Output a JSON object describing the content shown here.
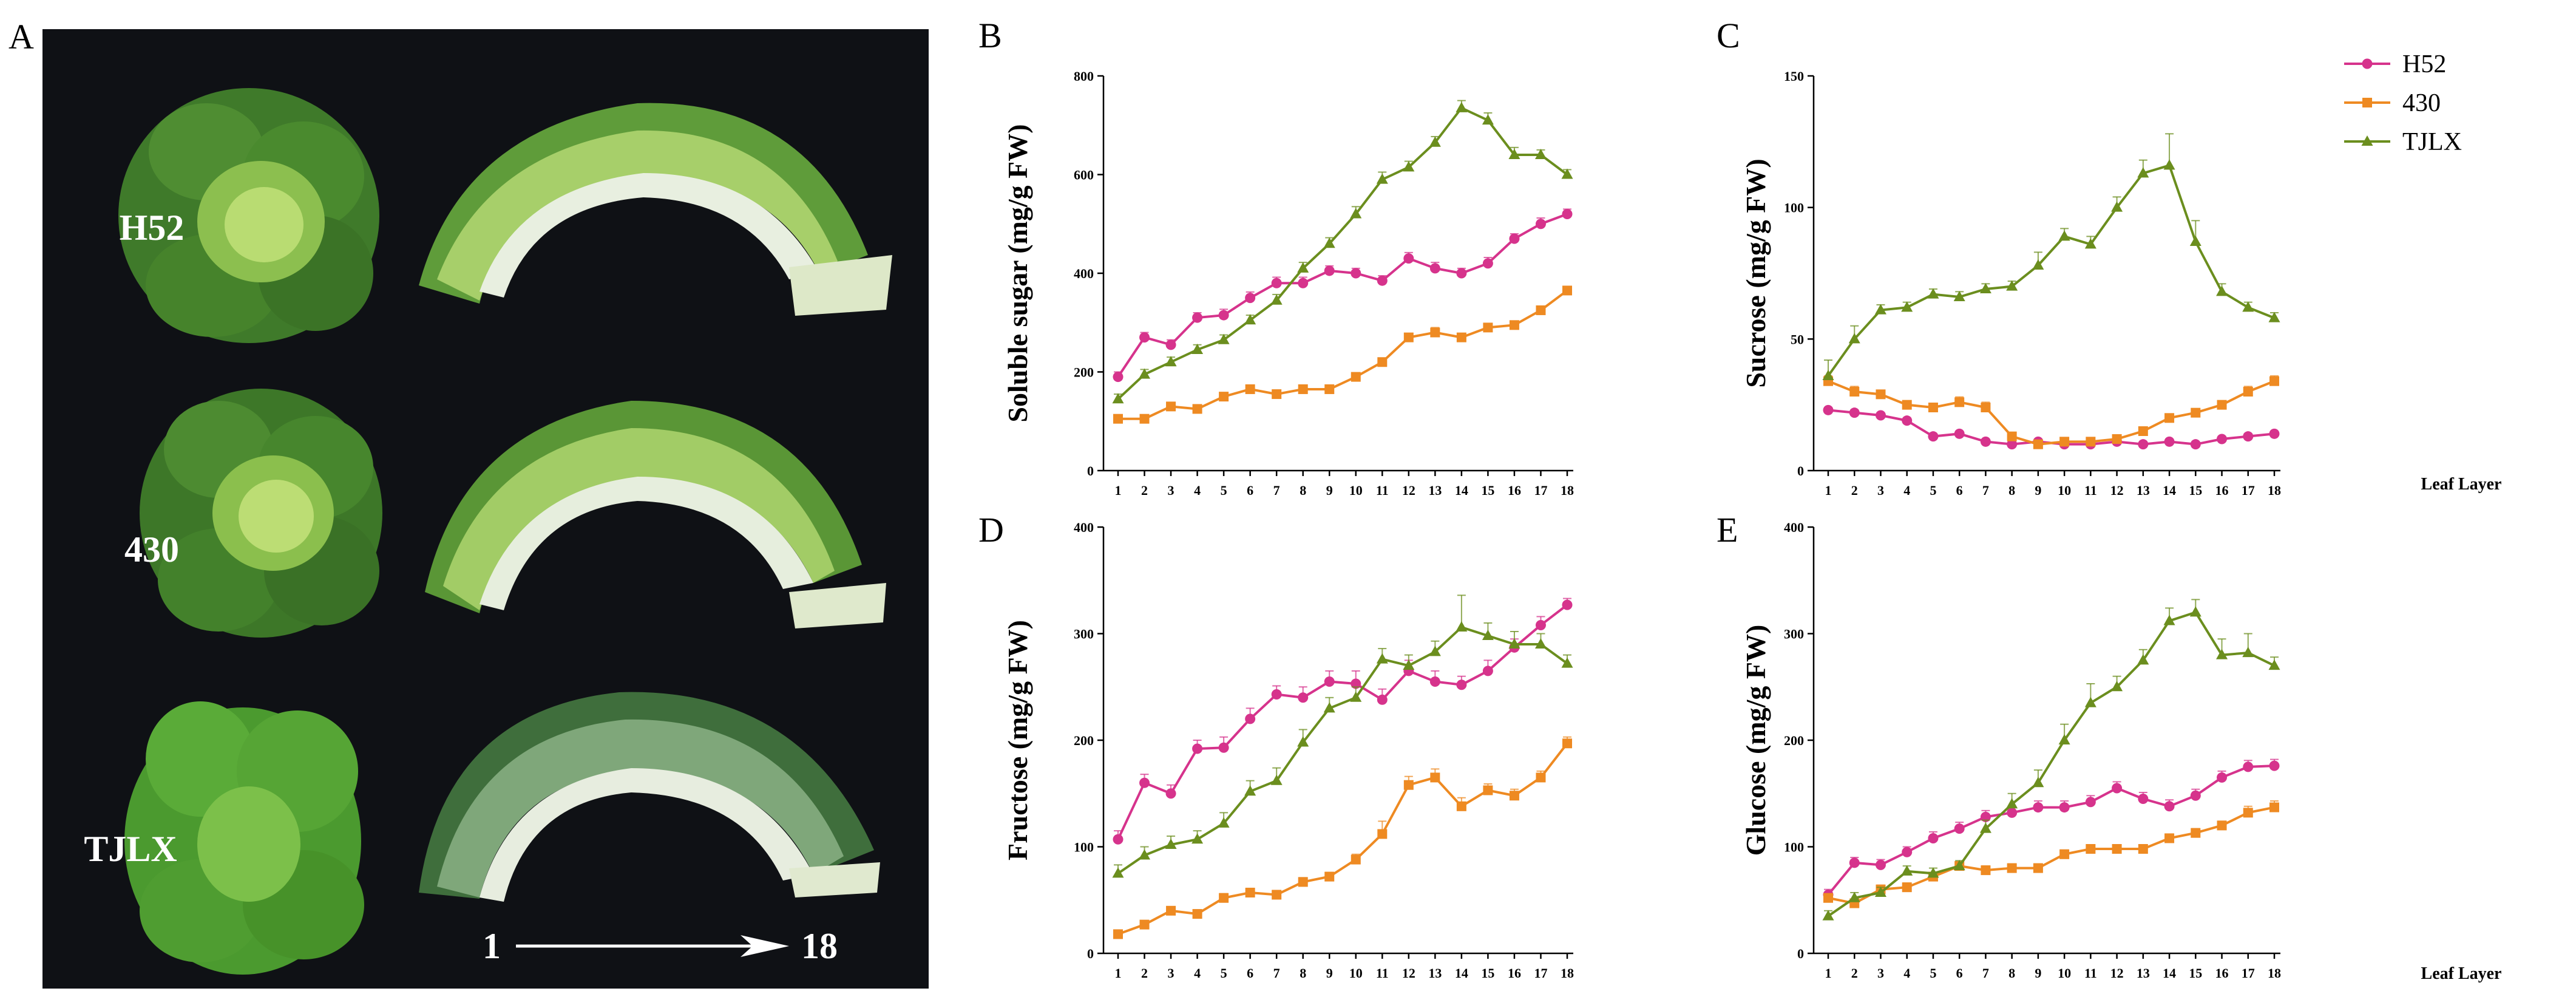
{
  "photo_panel": {
    "letter": "A",
    "labels": [
      "H52",
      "430",
      "TJLX"
    ],
    "arrow_start": "1",
    "arrow_end": "18",
    "colors": {
      "background": "#0f1115",
      "leaf_dark": "#3f7a2a",
      "leaf_light": "#a9d06a",
      "stem": "#e8efe0"
    }
  },
  "colors": {
    "H52": "#d6338c",
    "430": "#ee8a22",
    "TJLX": "#6b8e1e"
  },
  "chart_data": [
    {
      "panel": "B",
      "type": "line",
      "ylabel": "Soluble sugar (mg/g FW)",
      "xlabel": "",
      "ylim": [
        0,
        800
      ],
      "yticks": [
        0,
        200,
        400,
        600,
        800
      ],
      "categories": [
        "1",
        "2",
        "3",
        "4",
        "5",
        "6",
        "7",
        "8",
        "9",
        "10",
        "11",
        "12",
        "13",
        "14",
        "15",
        "16",
        "17",
        "18"
      ],
      "series": [
        {
          "name": "H52",
          "values": [
            190,
            270,
            255,
            310,
            315,
            350,
            380,
            380,
            405,
            400,
            385,
            430,
            410,
            400,
            420,
            470,
            500,
            520
          ],
          "errors": [
            10,
            10,
            10,
            10,
            12,
            12,
            12,
            12,
            10,
            10,
            10,
            12,
            12,
            10,
            12,
            10,
            12,
            10
          ]
        },
        {
          "name": "430",
          "values": [
            105,
            105,
            130,
            125,
            150,
            165,
            155,
            165,
            165,
            190,
            220,
            270,
            280,
            270,
            290,
            295,
            325,
            365
          ],
          "errors": [
            5,
            5,
            5,
            5,
            5,
            5,
            5,
            5,
            5,
            8,
            8,
            8,
            10,
            8,
            8,
            8,
            8,
            8
          ]
        },
        {
          "name": "TJLX",
          "values": [
            145,
            195,
            220,
            245,
            265,
            305,
            345,
            410,
            460,
            520,
            590,
            615,
            665,
            735,
            710,
            640,
            640,
            600
          ],
          "errors": [
            10,
            10,
            10,
            10,
            10,
            10,
            12,
            12,
            12,
            15,
            15,
            12,
            12,
            15,
            15,
            15,
            10,
            10
          ]
        }
      ]
    },
    {
      "panel": "C",
      "type": "line",
      "ylabel": "Sucrose (mg/g FW)",
      "xlabel": "Leaf Layer",
      "ylim": [
        0,
        150
      ],
      "yticks": [
        0,
        50,
        100,
        150
      ],
      "categories": [
        "1",
        "2",
        "3",
        "4",
        "5",
        "6",
        "7",
        "8",
        "9",
        "10",
        "11",
        "12",
        "13",
        "14",
        "15",
        "16",
        "17",
        "18"
      ],
      "series": [
        {
          "name": "H52",
          "values": [
            23,
            22,
            21,
            19,
            13,
            14,
            11,
            10,
            11,
            10,
            10,
            11,
            10,
            11,
            10,
            12,
            13,
            14
          ],
          "errors": [
            1,
            1,
            1,
            1,
            1,
            1,
            1,
            1,
            1,
            1,
            1,
            1,
            1,
            1,
            1,
            1,
            1,
            1
          ]
        },
        {
          "name": "430",
          "values": [
            34,
            30,
            29,
            25,
            24,
            26,
            24,
            13,
            10,
            11,
            11,
            12,
            15,
            20,
            22,
            25,
            30,
            34
          ],
          "errors": [
            2,
            2,
            1,
            1,
            1,
            2,
            2,
            1,
            1,
            1,
            1,
            1,
            1,
            1,
            1,
            1,
            2,
            2
          ]
        },
        {
          "name": "TJLX",
          "values": [
            36,
            50,
            61,
            62,
            67,
            66,
            69,
            70,
            78,
            89,
            86,
            100,
            113,
            116,
            87,
            68,
            62,
            58
          ],
          "errors": [
            6,
            5,
            2,
            2,
            2,
            2,
            2,
            2,
            5,
            3,
            3,
            4,
            5,
            12,
            8,
            3,
            2,
            2
          ]
        }
      ]
    },
    {
      "panel": "D",
      "type": "line",
      "ylabel": "Fructose (mg/g FW)",
      "xlabel": "",
      "ylim": [
        0,
        400
      ],
      "yticks": [
        0,
        100,
        200,
        300,
        400
      ],
      "categories": [
        "1",
        "2",
        "3",
        "4",
        "5",
        "6",
        "7",
        "8",
        "9",
        "10",
        "11",
        "12",
        "13",
        "14",
        "15",
        "16",
        "17",
        "18"
      ],
      "series": [
        {
          "name": "H52",
          "values": [
            107,
            160,
            150,
            192,
            193,
            220,
            243,
            240,
            255,
            253,
            238,
            265,
            255,
            252,
            265,
            287,
            308,
            327
          ],
          "errors": [
            8,
            8,
            8,
            8,
            10,
            10,
            8,
            10,
            10,
            12,
            10,
            10,
            10,
            8,
            10,
            8,
            8,
            6
          ]
        },
        {
          "name": "430",
          "values": [
            18,
            27,
            40,
            37,
            52,
            57,
            55,
            67,
            72,
            88,
            112,
            158,
            165,
            138,
            153,
            148,
            165,
            197
          ],
          "errors": [
            3,
            3,
            3,
            3,
            4,
            4,
            4,
            4,
            4,
            5,
            12,
            8,
            8,
            8,
            6,
            6,
            6,
            6
          ]
        },
        {
          "name": "TJLX",
          "values": [
            75,
            92,
            102,
            107,
            122,
            152,
            162,
            198,
            230,
            240,
            276,
            270,
            283,
            306,
            298,
            290,
            290,
            272
          ],
          "errors": [
            8,
            8,
            8,
            8,
            10,
            10,
            12,
            12,
            10,
            10,
            10,
            10,
            10,
            30,
            12,
            12,
            10,
            8
          ]
        }
      ]
    },
    {
      "panel": "E",
      "type": "line",
      "ylabel": "Glucose (mg/g FW)",
      "xlabel": "Leaf Layer",
      "ylim": [
        0,
        400
      ],
      "yticks": [
        0,
        100,
        200,
        300,
        400
      ],
      "categories": [
        "1",
        "2",
        "3",
        "4",
        "5",
        "6",
        "7",
        "8",
        "9",
        "10",
        "11",
        "12",
        "13",
        "14",
        "15",
        "16",
        "17",
        "18"
      ],
      "series": [
        {
          "name": "H52",
          "values": [
            55,
            85,
            83,
            95,
            108,
            117,
            128,
            132,
            137,
            137,
            142,
            155,
            145,
            138,
            148,
            165,
            175,
            176
          ],
          "errors": [
            5,
            5,
            5,
            5,
            6,
            6,
            6,
            6,
            6,
            6,
            6,
            6,
            6,
            6,
            6,
            6,
            6,
            6
          ]
        },
        {
          "name": "430",
          "values": [
            52,
            47,
            60,
            62,
            72,
            82,
            78,
            80,
            80,
            93,
            98,
            98,
            98,
            108,
            113,
            120,
            132,
            137
          ],
          "errors": [
            4,
            4,
            4,
            4,
            4,
            4,
            4,
            4,
            4,
            4,
            4,
            4,
            4,
            4,
            4,
            4,
            6,
            6
          ]
        },
        {
          "name": "TJLX",
          "values": [
            35,
            52,
            57,
            77,
            75,
            82,
            117,
            140,
            160,
            200,
            235,
            250,
            275,
            312,
            320,
            280,
            282,
            270
          ],
          "errors": [
            5,
            5,
            5,
            5,
            5,
            5,
            8,
            10,
            12,
            15,
            18,
            10,
            10,
            12,
            12,
            15,
            18,
            8
          ]
        }
      ]
    }
  ],
  "legend": {
    "items": [
      "H52",
      "430",
      "TJLX"
    ]
  }
}
